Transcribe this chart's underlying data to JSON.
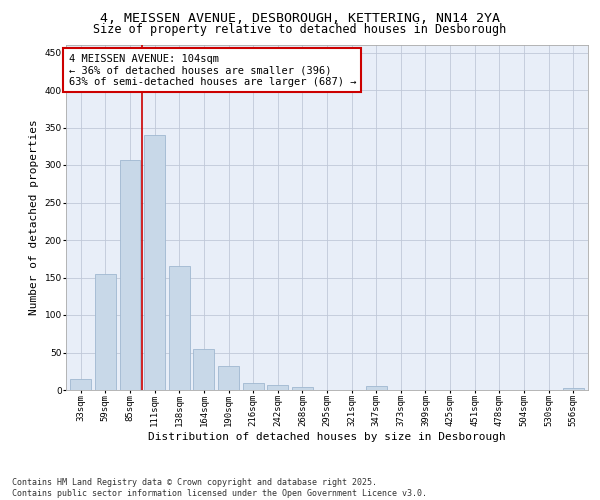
{
  "title_line1": "4, MEISSEN AVENUE, DESBOROUGH, KETTERING, NN14 2YA",
  "title_line2": "Size of property relative to detached houses in Desborough",
  "xlabel": "Distribution of detached houses by size in Desborough",
  "ylabel": "Number of detached properties",
  "categories": [
    "33sqm",
    "59sqm",
    "85sqm",
    "111sqm",
    "138sqm",
    "164sqm",
    "190sqm",
    "216sqm",
    "242sqm",
    "268sqm",
    "295sqm",
    "321sqm",
    "347sqm",
    "373sqm",
    "399sqm",
    "425sqm",
    "451sqm",
    "478sqm",
    "504sqm",
    "530sqm",
    "556sqm"
  ],
  "values": [
    15,
    155,
    307,
    340,
    165,
    55,
    32,
    9,
    7,
    4,
    0,
    0,
    5,
    0,
    0,
    0,
    0,
    0,
    0,
    0,
    3
  ],
  "bar_color": "#c8d8e8",
  "bar_edge_color": "#a0b8d0",
  "background_color": "#e8eef8",
  "grid_color": "#c0c8d8",
  "annotation_text": "4 MEISSEN AVENUE: 104sqm\n← 36% of detached houses are smaller (396)\n63% of semi-detached houses are larger (687) →",
  "annotation_box_color": "#ffffff",
  "annotation_box_edge_color": "#cc0000",
  "vline_x": 2.5,
  "vline_color": "#cc0000",
  "ylim": [
    0,
    460
  ],
  "yticks": [
    0,
    50,
    100,
    150,
    200,
    250,
    300,
    350,
    400,
    450
  ],
  "footer_text": "Contains HM Land Registry data © Crown copyright and database right 2025.\nContains public sector information licensed under the Open Government Licence v3.0.",
  "title_fontsize": 9.5,
  "subtitle_fontsize": 8.5,
  "axis_label_fontsize": 8,
  "tick_fontsize": 6.5,
  "annotation_fontsize": 7.5,
  "footer_fontsize": 6.0
}
